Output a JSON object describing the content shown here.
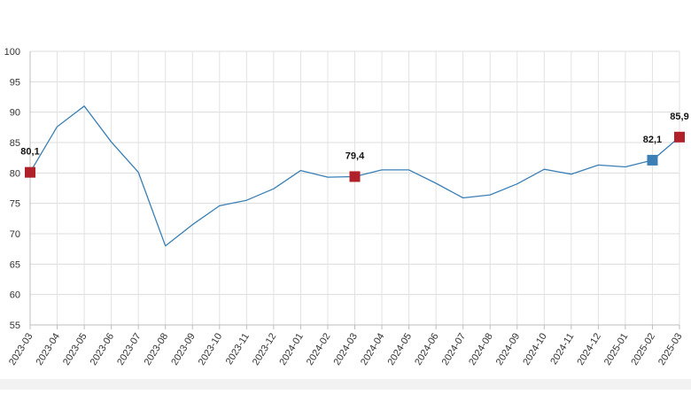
{
  "chart_data": {
    "type": "line",
    "title": "",
    "xlabel": "",
    "ylabel": "",
    "ylim": [
      55,
      100
    ],
    "yticks": [
      55,
      60,
      65,
      70,
      75,
      80,
      85,
      90,
      95,
      100
    ],
    "grid": true,
    "legend": "none",
    "line_color": "#3a7fb5",
    "categories": [
      "2023-03",
      "2023-04",
      "2023-05",
      "2023-06",
      "2023-07",
      "2023-08",
      "2023-09",
      "2023-10",
      "2023-11",
      "2023-12",
      "2024-01",
      "2024-02",
      "2024-03",
      "2024-04",
      "2024-05",
      "2024-06",
      "2024-07",
      "2024-08",
      "2024-09",
      "2024-10",
      "2024-11",
      "2024-12",
      "2025-01",
      "2025-02",
      "2025-03"
    ],
    "series": [
      {
        "values": [
          80.1,
          87.6,
          91.0,
          85.1,
          80.1,
          68.0,
          71.5,
          74.6,
          75.5,
          77.4,
          80.4,
          79.3,
          79.4,
          80.5,
          80.5,
          78.3,
          75.9,
          76.4,
          78.2,
          80.6,
          79.8,
          81.3,
          81.0,
          82.1,
          85.9
        ]
      }
    ],
    "highlights": [
      {
        "index": 0,
        "label": "80,1",
        "color": "#b0212a"
      },
      {
        "index": 12,
        "label": "79,4",
        "color": "#b0212a"
      },
      {
        "index": 23,
        "label": "82,1",
        "color": "#3a7fb5"
      },
      {
        "index": 24,
        "label": "85,9",
        "color": "#b0212a"
      }
    ]
  }
}
